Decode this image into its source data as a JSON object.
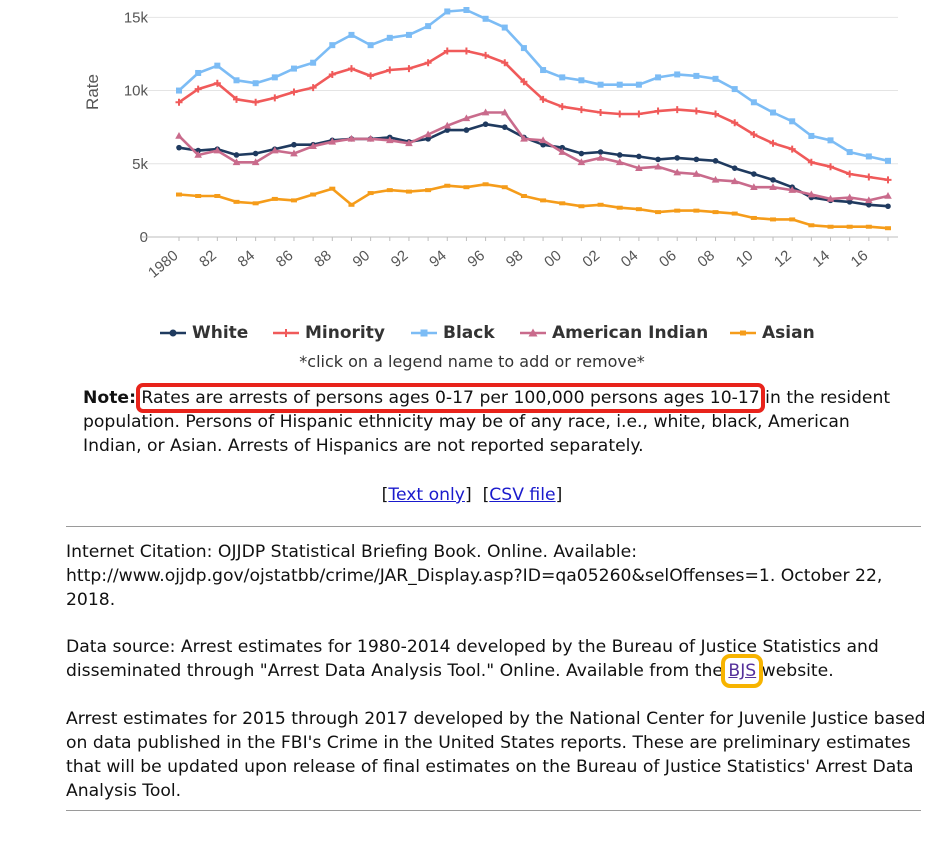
{
  "chart_data": {
    "type": "line",
    "ylabel": "Rate",
    "ylim": [
      0,
      15500
    ],
    "yticks": [
      {
        "v": 0,
        "label": "0"
      },
      {
        "v": 5000,
        "label": "5k"
      },
      {
        "v": 10000,
        "label": "10k"
      },
      {
        "v": 15000,
        "label": "15k"
      }
    ],
    "x": [
      1980,
      1981,
      1982,
      1983,
      1984,
      1985,
      1986,
      1987,
      1988,
      1989,
      1990,
      1991,
      1992,
      1993,
      1994,
      1995,
      1996,
      1997,
      1998,
      1999,
      2000,
      2001,
      2002,
      2003,
      2004,
      2005,
      2006,
      2007,
      2008,
      2009,
      2010,
      2011,
      2012,
      2013,
      2014,
      2015,
      2016,
      2017
    ],
    "xtick_labels": [
      "1980",
      "82",
      "84",
      "86",
      "88",
      "90",
      "92",
      "94",
      "96",
      "98",
      "00",
      "02",
      "04",
      "06",
      "08",
      "10",
      "12",
      "14",
      "16"
    ],
    "grid": "horizontal",
    "legend_position": "bottom",
    "series": [
      {
        "name": "White",
        "color": "#1f3a5f",
        "marker": "circle",
        "values": [
          6100,
          5900,
          6000,
          5600,
          5700,
          6000,
          6300,
          6300,
          6600,
          6700,
          6700,
          6800,
          6500,
          6700,
          7300,
          7300,
          7700,
          7500,
          6800,
          6300,
          6100,
          5700,
          5800,
          5600,
          5500,
          5300,
          5400,
          5300,
          5200,
          4700,
          4300,
          3900,
          3400,
          2700,
          2500,
          2400,
          2200,
          2100
        ]
      },
      {
        "name": "Minority",
        "color": "#f05a5a",
        "marker": "plus",
        "values": [
          9200,
          10100,
          10500,
          9400,
          9200,
          9500,
          9900,
          10200,
          11100,
          11500,
          11000,
          11400,
          11500,
          11900,
          12700,
          12700,
          12400,
          11900,
          10600,
          9400,
          8900,
          8700,
          8500,
          8400,
          8400,
          8600,
          8700,
          8600,
          8400,
          7800,
          7000,
          6400,
          6000,
          5100,
          4800,
          4300,
          4100,
          3900
        ]
      },
      {
        "name": "Black",
        "color": "#7cbcf5",
        "marker": "square",
        "values": [
          10000,
          11200,
          11700,
          10700,
          10500,
          10900,
          11500,
          11900,
          13100,
          13800,
          13100,
          13600,
          13800,
          14400,
          15400,
          15500,
          14900,
          14300,
          12900,
          11400,
          10900,
          10700,
          10400,
          10400,
          10400,
          10900,
          11100,
          11000,
          10800,
          10100,
          9200,
          8500,
          7900,
          6900,
          6600,
          5800,
          5500,
          5200
        ]
      },
      {
        "name": "American Indian",
        "color": "#c96b8c",
        "marker": "triangle",
        "values": [
          6900,
          5600,
          5900,
          5100,
          5100,
          5900,
          5700,
          6200,
          6500,
          6700,
          6700,
          6600,
          6400,
          7000,
          7600,
          8100,
          8500,
          8500,
          6700,
          6600,
          5800,
          5100,
          5400,
          5100,
          4700,
          4800,
          4400,
          4300,
          3900,
          3800,
          3400,
          3400,
          3200,
          2900,
          2600,
          2700,
          2500,
          2800
        ]
      },
      {
        "name": "Asian",
        "color": "#f59c1a",
        "marker": "dash",
        "values": [
          2900,
          2800,
          2800,
          2400,
          2300,
          2600,
          2500,
          2900,
          3300,
          2200,
          3000,
          3200,
          3100,
          3200,
          3500,
          3400,
          3600,
          3400,
          2800,
          2500,
          2300,
          2100,
          2200,
          2000,
          1900,
          1700,
          1800,
          1800,
          1700,
          1600,
          1300,
          1200,
          1200,
          800,
          700,
          700,
          700,
          600
        ]
      }
    ]
  },
  "legend_hint": "*click on a legend name to add or remove*",
  "note": {
    "label": "Note:",
    "highlighted": "Rates are arrests of persons ages 0-17 per 100,000 persons ages 10-17",
    "rest": " in the resident population. Persons of Hispanic ethnicity may be of any race, i.e., white, black, American Indian, or Asian. Arrests of Hispanics are not reported separately."
  },
  "links": {
    "text_only": "Text only",
    "csv_file": "CSV file"
  },
  "citation": "Internet Citation: OJJDP Statistical Briefing Book. Online. Available: http://www.ojjdp.gov/ojstatbb/crime/JAR_Display.asp?ID=qa05260&selOffenses=1. October 22, 2018.",
  "data_source": {
    "before": "Data source: Arrest estimates for 1980-2014 developed by the Bureau of Justice Statistics and disseminated through \"Arrest Data Analysis Tool.\" Online. Available from the ",
    "link": "BJS",
    "after": " website."
  },
  "arrest_estimates": "Arrest estimates for 2015 through 2017 developed by the National Center for Juvenile Justice based on data published in the FBI's Crime in the United States reports. These are preliminary estimates that will be updated upon release of final estimates on the Bureau of Justice Statistics' Arrest Data Analysis Tool.",
  "highlight_colors": {
    "red": "#e8231b",
    "orange": "#f7b400"
  }
}
